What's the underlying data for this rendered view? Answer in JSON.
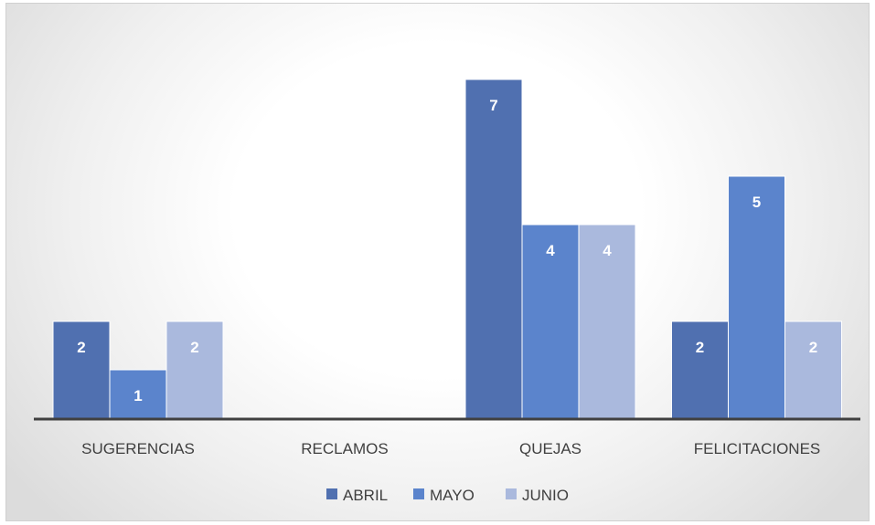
{
  "chart_data": {
    "type": "bar",
    "categories": [
      "SUGERENCIAS",
      "RECLAMOS",
      "QUEJAS",
      "FELICITACIONES"
    ],
    "series": [
      {
        "name": "ABRIL",
        "color": "#5070b0",
        "values": [
          2,
          null,
          7,
          2
        ],
        "labels": [
          "2",
          "",
          "7",
          "2"
        ]
      },
      {
        "name": "MAYO",
        "color": "#5b84cc",
        "values": [
          1,
          null,
          4,
          5
        ],
        "labels": [
          "1",
          "",
          "4",
          "5"
        ]
      },
      {
        "name": "JUNIO",
        "color": "#aab9dd",
        "values": [
          2,
          null,
          4,
          2
        ],
        "labels": [
          "2",
          "",
          "4",
          "2"
        ]
      }
    ],
    "title": "",
    "xlabel": "",
    "ylabel": "",
    "ylim": [
      0,
      7.5
    ],
    "grid": false,
    "legend": "bottom-center"
  }
}
